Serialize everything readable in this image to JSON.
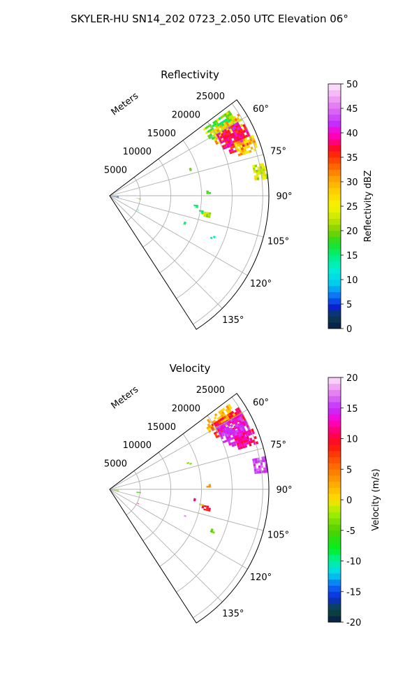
{
  "figure": {
    "title": "SKYLER-HU  SN14_202  0723_2.050 UTC Elevation 06°"
  },
  "colors": {
    "grid": "#b0b0b0",
    "outline": "#000000",
    "background": "#ffffff"
  },
  "chart_data": [
    {
      "type": "heatmap",
      "projection": "polar-sector",
      "title": "Reflectivity",
      "range_label": "Meters",
      "radial_ticks": [
        "5000",
        "10000",
        "15000",
        "20000",
        "25000"
      ],
      "radial_tick_values": [
        5000,
        10000,
        15000,
        20000,
        25000
      ],
      "range_max": 26000,
      "azimuth_ticks": [
        "60°",
        "75°",
        "90°",
        "105°",
        "120°",
        "135°"
      ],
      "azimuth_tick_values": [
        60,
        75,
        90,
        105,
        120,
        135
      ],
      "azimuth_range": [
        53,
        147
      ],
      "colorbar": {
        "label": "Reflectivity dBZ",
        "range": [
          0,
          50
        ],
        "ticks": [
          "0",
          "5",
          "10",
          "15",
          "20",
          "25",
          "30",
          "35",
          "40",
          "45",
          "50"
        ],
        "tick_values": [
          0,
          5,
          10,
          15,
          20,
          25,
          30,
          35,
          40,
          45,
          50
        ]
      },
      "echoes": [
        {
          "az": 58,
          "r": [
            18700,
            23900
          ],
          "dz": [
            15,
            25
          ],
          "width": 7
        },
        {
          "az": 61,
          "r": [
            19300,
            24900
          ],
          "dz": [
            22,
            33
          ],
          "width": 7
        },
        {
          "az": 64,
          "r": [
            20000,
            24600
          ],
          "dz": [
            35,
            42
          ],
          "width": 8
        },
        {
          "az": 67,
          "r": [
            20800,
            24200
          ],
          "dz": [
            34,
            41
          ],
          "width": 8
        },
        {
          "az": 70,
          "r": [
            22000,
            25200
          ],
          "dz": [
            24,
            33
          ],
          "width": 6
        },
        {
          "az": 81,
          "r": [
            23800,
            25800
          ],
          "dz": [
            20,
            28
          ],
          "width": 6
        },
        {
          "az": 72,
          "r": [
            13300,
            13800
          ],
          "dz": [
            18,
            20
          ],
          "width": 2
        },
        {
          "az": 88,
          "r": [
            15800,
            16200
          ],
          "dz": [
            17,
            19
          ],
          "width": 2
        },
        {
          "az": 101,
          "r": [
            15300,
            16600
          ],
          "dz": [
            20,
            23
          ],
          "width": 3
        },
        {
          "az": 96,
          "r": [
            4400,
            4800
          ],
          "dz": [
            20,
            22
          ],
          "width": 2
        },
        {
          "az": 116,
          "r": [
            5000,
            5300
          ],
          "dz": [
            10,
            13
          ],
          "width": 2
        },
        {
          "az": 110,
          "r": [
            12500,
            13000
          ],
          "dz": [
            14,
            16
          ],
          "width": 2
        },
        {
          "az": 97,
          "r": [
            13800,
            14300
          ],
          "dz": [
            14,
            16
          ],
          "width": 2
        },
        {
          "az": 100,
          "r": [
            14800,
            15200
          ],
          "dz": [
            15,
            17
          ],
          "width": 2
        },
        {
          "az": 112,
          "r": [
            17800,
            18200
          ],
          "dz": [
            12,
            14
          ],
          "width": 2
        },
        {
          "az": 100,
          "r": [
            0,
            1500
          ],
          "dz": [
            2,
            9
          ],
          "width": 14
        }
      ]
    },
    {
      "type": "heatmap",
      "projection": "polar-sector",
      "title": "Velocity",
      "range_label": "Meters",
      "radial_ticks": [
        "5000",
        "10000",
        "15000",
        "20000",
        "25000"
      ],
      "radial_tick_values": [
        5000,
        10000,
        15000,
        20000,
        25000
      ],
      "range_max": 26000,
      "azimuth_ticks": [
        "60°",
        "75°",
        "90°",
        "105°",
        "120°",
        "135°"
      ],
      "azimuth_tick_values": [
        60,
        75,
        90,
        105,
        120,
        135
      ],
      "azimuth_range": [
        53,
        147
      ],
      "colorbar": {
        "label": "Velocity (m/s)",
        "range": [
          -20,
          20
        ],
        "ticks": [
          "-20",
          "-15",
          "-10",
          "-5",
          "0",
          "5",
          "10",
          "15",
          "20"
        ],
        "tick_values": [
          -20,
          -15,
          -10,
          -5,
          0,
          5,
          10,
          15,
          20
        ]
      },
      "echoes": [
        {
          "az": 58,
          "r": [
            18700,
            23900
          ],
          "v": [
            0,
            4
          ],
          "width": 7
        },
        {
          "az": 61,
          "r": [
            19300,
            24900
          ],
          "v": [
            6,
            12
          ],
          "width": 7
        },
        {
          "az": 64,
          "r": [
            20000,
            24600
          ],
          "v": [
            12,
            16
          ],
          "width": 8
        },
        {
          "az": 67,
          "r": [
            20800,
            24200
          ],
          "v": [
            13,
            16
          ],
          "width": 8
        },
        {
          "az": 70,
          "r": [
            22000,
            25200
          ],
          "v": [
            9,
            14
          ],
          "width": 6
        },
        {
          "az": 81,
          "r": [
            23800,
            25800
          ],
          "v": [
            14,
            17
          ],
          "width": 6
        },
        {
          "az": 72,
          "r": [
            13300,
            13800
          ],
          "v": [
            -4,
            -2
          ],
          "width": 2
        },
        {
          "az": 88,
          "r": [
            15800,
            16200
          ],
          "v": [
            2,
            4
          ],
          "width": 2
        },
        {
          "az": 101,
          "r": [
            15300,
            16600
          ],
          "v": [
            8,
            11
          ],
          "width": 3
        },
        {
          "az": 96,
          "r": [
            4400,
            4800
          ],
          "v": [
            -6,
            -4
          ],
          "width": 2
        },
        {
          "az": 116,
          "r": [
            5000,
            5300
          ],
          "v": [
            10,
            16
          ],
          "width": 2
        },
        {
          "az": 110,
          "r": [
            12500,
            13000
          ],
          "v": [
            16,
            18
          ],
          "width": 2
        },
        {
          "az": 97,
          "r": [
            13800,
            14300
          ],
          "v": [
            10,
            12
          ],
          "width": 2
        },
        {
          "az": 100,
          "r": [
            14800,
            15200
          ],
          "v": [
            0,
            2
          ],
          "width": 2
        },
        {
          "az": 112,
          "r": [
            17800,
            18200
          ],
          "v": [
            -5,
            -3
          ],
          "width": 2
        },
        {
          "az": 100,
          "r": [
            0,
            1500
          ],
          "v": [
            -5,
            -2
          ],
          "width": 14
        }
      ]
    }
  ]
}
